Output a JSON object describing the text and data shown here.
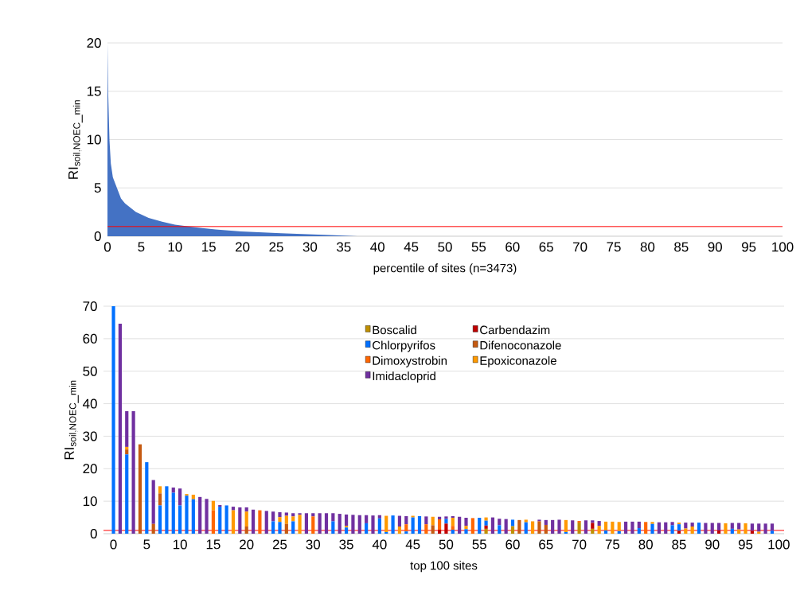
{
  "chart_data": [
    {
      "type": "area",
      "ylabel": "\\mathrm{RI}_{\\mathrm{soil,NOEC\\_min}}",
      "xlabel": "percentile of sites (n=3473)",
      "x": [
        0,
        0.1,
        0.3,
        0.5,
        0.8,
        1.4,
        2,
        2.6,
        4.2,
        6.1,
        8.1,
        10,
        13.2,
        16,
        19.8,
        25.7,
        33.6,
        37,
        37.5
      ],
      "values": [
        20,
        14.9,
        9.9,
        7.5,
        6.1,
        5.0,
        3.9,
        3.4,
        2.5,
        1.9,
        1.5,
        1.2,
        0.9,
        0.7,
        0.5,
        0.3,
        0.1,
        0,
        0
      ],
      "color": "#4472c4",
      "xlim": [
        0,
        100
      ],
      "xticks": [
        0,
        5,
        10,
        15,
        20,
        25,
        30,
        35,
        40,
        45,
        50,
        55,
        60,
        65,
        70,
        75,
        80,
        85,
        90,
        95,
        100
      ],
      "ylim": [
        0,
        20
      ],
      "yticks": [
        0,
        5,
        10,
        15,
        20
      ],
      "grid": "y",
      "ref_lines": [
        {
          "axis": "y",
          "value": 1,
          "color": "#ff0000"
        }
      ]
    },
    {
      "type": "bar",
      "stacked": true,
      "ylabel": "\\mathrm{RI}_{\\mathrm{soil,NOEC\\_min}}",
      "xlabel": "top 100 sites",
      "x": [
        0,
        1,
        2,
        3,
        4,
        5,
        6,
        7,
        8,
        9,
        10,
        11,
        12,
        13,
        14,
        15,
        16,
        17,
        18,
        19,
        20,
        21,
        22,
        23,
        24,
        25,
        26,
        27,
        28,
        29,
        30,
        31,
        32,
        33,
        34,
        35,
        36,
        37,
        38,
        39,
        40,
        41,
        42,
        43,
        44,
        45,
        46,
        47,
        48,
        49,
        50,
        51,
        52,
        53,
        54,
        55,
        56,
        57,
        58,
        59,
        60,
        61,
        62,
        63,
        64,
        65,
        66,
        67,
        68,
        69,
        70,
        71,
        72,
        73,
        74,
        75,
        76,
        77,
        78,
        79,
        80,
        81,
        82,
        83,
        84,
        85,
        86,
        87,
        88,
        89,
        90,
        91,
        92,
        93,
        94,
        95,
        96,
        97,
        98,
        99
      ],
      "series": [
        {
          "name": "Boscalid",
          "color": "#bf8f00",
          "values": [
            0,
            0,
            0,
            0,
            0,
            0,
            0,
            0,
            0,
            0,
            0,
            0,
            0,
            0,
            0,
            0,
            0,
            0,
            0,
            0,
            0,
            0,
            0,
            0,
            0,
            0,
            0,
            0,
            0,
            0,
            0,
            0,
            0,
            0,
            0,
            0,
            0,
            0,
            0,
            0,
            0,
            0,
            0,
            0,
            0,
            0,
            0,
            0,
            0,
            0,
            0,
            0,
            0,
            0,
            0,
            0,
            1.5,
            0,
            0,
            0,
            2.3,
            0,
            0,
            0,
            0,
            0,
            0,
            0,
            0,
            0,
            3.4,
            0,
            1.5,
            0,
            0,
            0,
            0,
            0,
            0,
            0,
            0,
            0,
            0,
            0,
            0,
            0,
            0,
            0,
            0,
            0,
            0,
            0,
            0,
            0,
            0,
            0,
            0,
            0,
            0,
            0
          ]
        },
        {
          "name": "Carbendazim",
          "color": "#c00000",
          "values": [
            0,
            0,
            0,
            0,
            0,
            0,
            0,
            0,
            0,
            0,
            0,
            0,
            0,
            0,
            0,
            0,
            0,
            0,
            0,
            0,
            0,
            0,
            0,
            0,
            0,
            0,
            0,
            0,
            0,
            0,
            0,
            0,
            0,
            0,
            0,
            0,
            0,
            0,
            0,
            0,
            0,
            0,
            0,
            0,
            0,
            0,
            0,
            0,
            0,
            1.2,
            3.1,
            0,
            0,
            0,
            0,
            0,
            1,
            0,
            0,
            0,
            0,
            0,
            0,
            0,
            0,
            0,
            0,
            0,
            0,
            0,
            0,
            0,
            1.8,
            0,
            0,
            0,
            0,
            0,
            0,
            0,
            0,
            0,
            0,
            0,
            0,
            0.9,
            0,
            0,
            0,
            0,
            0,
            1,
            0,
            0,
            0,
            0,
            0.9,
            0,
            0,
            0
          ]
        },
        {
          "name": "Chlorpyrifos",
          "color": "#0070ff",
          "values": [
            70,
            0,
            24.4,
            0,
            0,
            22,
            0,
            8.7,
            14.6,
            12.6,
            8.7,
            11.7,
            10.6,
            0,
            0,
            0,
            8.3,
            8.7,
            0,
            0,
            0,
            0,
            0,
            0,
            3.8,
            3.6,
            0,
            3.8,
            0,
            0,
            0,
            0,
            0,
            3.8,
            0,
            1.9,
            0,
            0,
            3.2,
            0,
            4.7,
            0.5,
            5.6,
            0,
            0.7,
            5.0,
            5.4,
            0,
            0,
            0,
            1.4,
            1.2,
            0,
            1.4,
            0,
            4.9,
            1.5,
            0,
            2.6,
            0,
            2,
            0,
            3.5,
            0,
            0,
            0,
            0,
            0,
            0.5,
            0,
            0,
            0,
            0,
            0,
            1,
            0,
            0.8,
            0,
            0,
            1.7,
            0,
            3,
            0,
            0,
            2.6,
            2,
            0,
            0,
            3.4,
            0,
            0,
            0,
            0,
            1.5,
            0,
            0,
            0,
            0,
            0,
            0.9
          ]
        },
        {
          "name": "Difenoconazole",
          "color": "#c55a11",
          "values": [
            0,
            0,
            1.5,
            0,
            27.5,
            0,
            3,
            3.7,
            0,
            0,
            0,
            0,
            0,
            0,
            0,
            0,
            0,
            0,
            0,
            0,
            2.2,
            0,
            0,
            0,
            0,
            0,
            3,
            0,
            0,
            0,
            0,
            0,
            0,
            0,
            0,
            0,
            0,
            0,
            0,
            0,
            0,
            0,
            0,
            0,
            0,
            0,
            0,
            0,
            2.6,
            0,
            0,
            0,
            0,
            0,
            0,
            0,
            0,
            0,
            0,
            0,
            0,
            4.2,
            0,
            0,
            3.8,
            2.7,
            0,
            0,
            0,
            0,
            0,
            0,
            0,
            0,
            0,
            0,
            0,
            0,
            0,
            0,
            0,
            0,
            0,
            0,
            0,
            0,
            0,
            0,
            0,
            0,
            0,
            0,
            0,
            0,
            0,
            0,
            0,
            0,
            0,
            0
          ]
        },
        {
          "name": "Dimoxystrobin",
          "color": "#ff6600",
          "values": [
            0,
            0,
            0,
            0,
            0,
            0,
            0,
            0,
            0,
            0,
            0,
            0,
            0,
            0,
            0,
            7.2,
            0,
            0,
            0,
            0,
            0,
            0,
            7.2,
            0,
            0,
            0,
            0,
            0,
            0,
            0,
            5.3,
            0,
            0,
            0,
            0,
            0,
            0,
            0,
            0,
            0,
            0,
            0,
            0,
            0,
            2.2,
            0,
            0,
            2.9,
            0,
            3.2,
            0,
            1.2,
            0,
            0,
            4.8,
            0,
            0,
            0,
            0,
            0,
            0,
            0,
            0,
            0,
            0,
            0,
            0,
            0,
            0,
            0,
            0.5,
            0,
            0,
            0,
            0,
            0,
            0,
            0,
            0,
            0,
            3.6,
            0,
            0,
            0,
            0,
            0,
            0,
            0,
            0,
            0,
            0,
            0,
            0,
            0,
            0,
            0,
            0,
            0,
            0,
            0
          ]
        },
        {
          "name": "Epoxiconazole",
          "color": "#ff9900",
          "values": [
            0,
            0,
            0.8,
            0,
            0,
            0,
            0,
            2.2,
            0,
            0,
            0,
            0.5,
            1.4,
            0,
            0,
            2.9,
            0,
            0,
            7.2,
            0,
            4.6,
            0,
            0,
            0,
            0,
            1.5,
            2.5,
            1.5,
            5.8,
            0,
            0,
            0,
            0,
            0,
            0,
            0.5,
            0,
            0,
            0,
            0,
            0,
            5.0,
            0,
            2.2,
            0,
            0.5,
            0,
            0,
            2.6,
            0,
            0,
            2.5,
            0,
            1,
            0,
            0,
            1,
            0,
            0,
            0,
            0,
            0,
            0.8,
            3.8,
            0,
            0,
            0,
            0,
            3.7,
            0,
            0,
            0,
            0,
            2.4,
            2.7,
            3.7,
            2.8,
            0,
            0,
            0,
            0,
            0.6,
            0,
            0,
            0,
            0.5,
            1.6,
            2.2,
            0,
            0,
            0,
            0,
            3.2,
            0,
            1.3,
            3.2,
            0,
            0.6,
            0,
            0
          ]
        },
        {
          "name": "Imidacloprid",
          "color": "#7030a0",
          "values": [
            0,
            64.6,
            11,
            37.7,
            0,
            0,
            13.5,
            0,
            0,
            1.6,
            5.2,
            0,
            0,
            11.3,
            10.7,
            0,
            0.5,
            0,
            1.1,
            8.1,
            1.3,
            7.4,
            0,
            7,
            3,
            1.5,
            1,
            1,
            0.5,
            6.3,
            1,
            6.3,
            6.3,
            2.5,
            6.1,
            3.5,
            5.8,
            5.7,
            2.5,
            5.6,
            1,
            0,
            0,
            3.3,
            2.5,
            0,
            0,
            2.4,
            0,
            0.8,
            0.8,
            0.5,
            5.2,
            2.5,
            0,
            0,
            0,
            5,
            2,
            4.5,
            0,
            0,
            0,
            0,
            0.5,
            1.5,
            4.2,
            4.3,
            0,
            4.1,
            0,
            4.1,
            0.8,
            1.5,
            0,
            0,
            0,
            3.7,
            3.7,
            2,
            0,
            0,
            3.5,
            3.5,
            1,
            0,
            1.8,
            1.2,
            0,
            3.3,
            3.3,
            2.3,
            0,
            1.8,
            2,
            0,
            2.2,
            2.5,
            3.1,
            2.2
          ]
        }
      ],
      "xlim": [
        -1.5,
        100.8
      ],
      "xticks": [
        0,
        5,
        10,
        15,
        20,
        25,
        30,
        35,
        40,
        45,
        50,
        55,
        60,
        65,
        70,
        75,
        80,
        85,
        90,
        95,
        100
      ],
      "ylim": [
        0,
        70
      ],
      "yticks": [
        0,
        10,
        20,
        30,
        40,
        50,
        60,
        70
      ],
      "grid": "y",
      "legend": "top",
      "ref_lines": [
        {
          "axis": "y",
          "value": 1,
          "color": "#ff0000"
        }
      ]
    }
  ]
}
